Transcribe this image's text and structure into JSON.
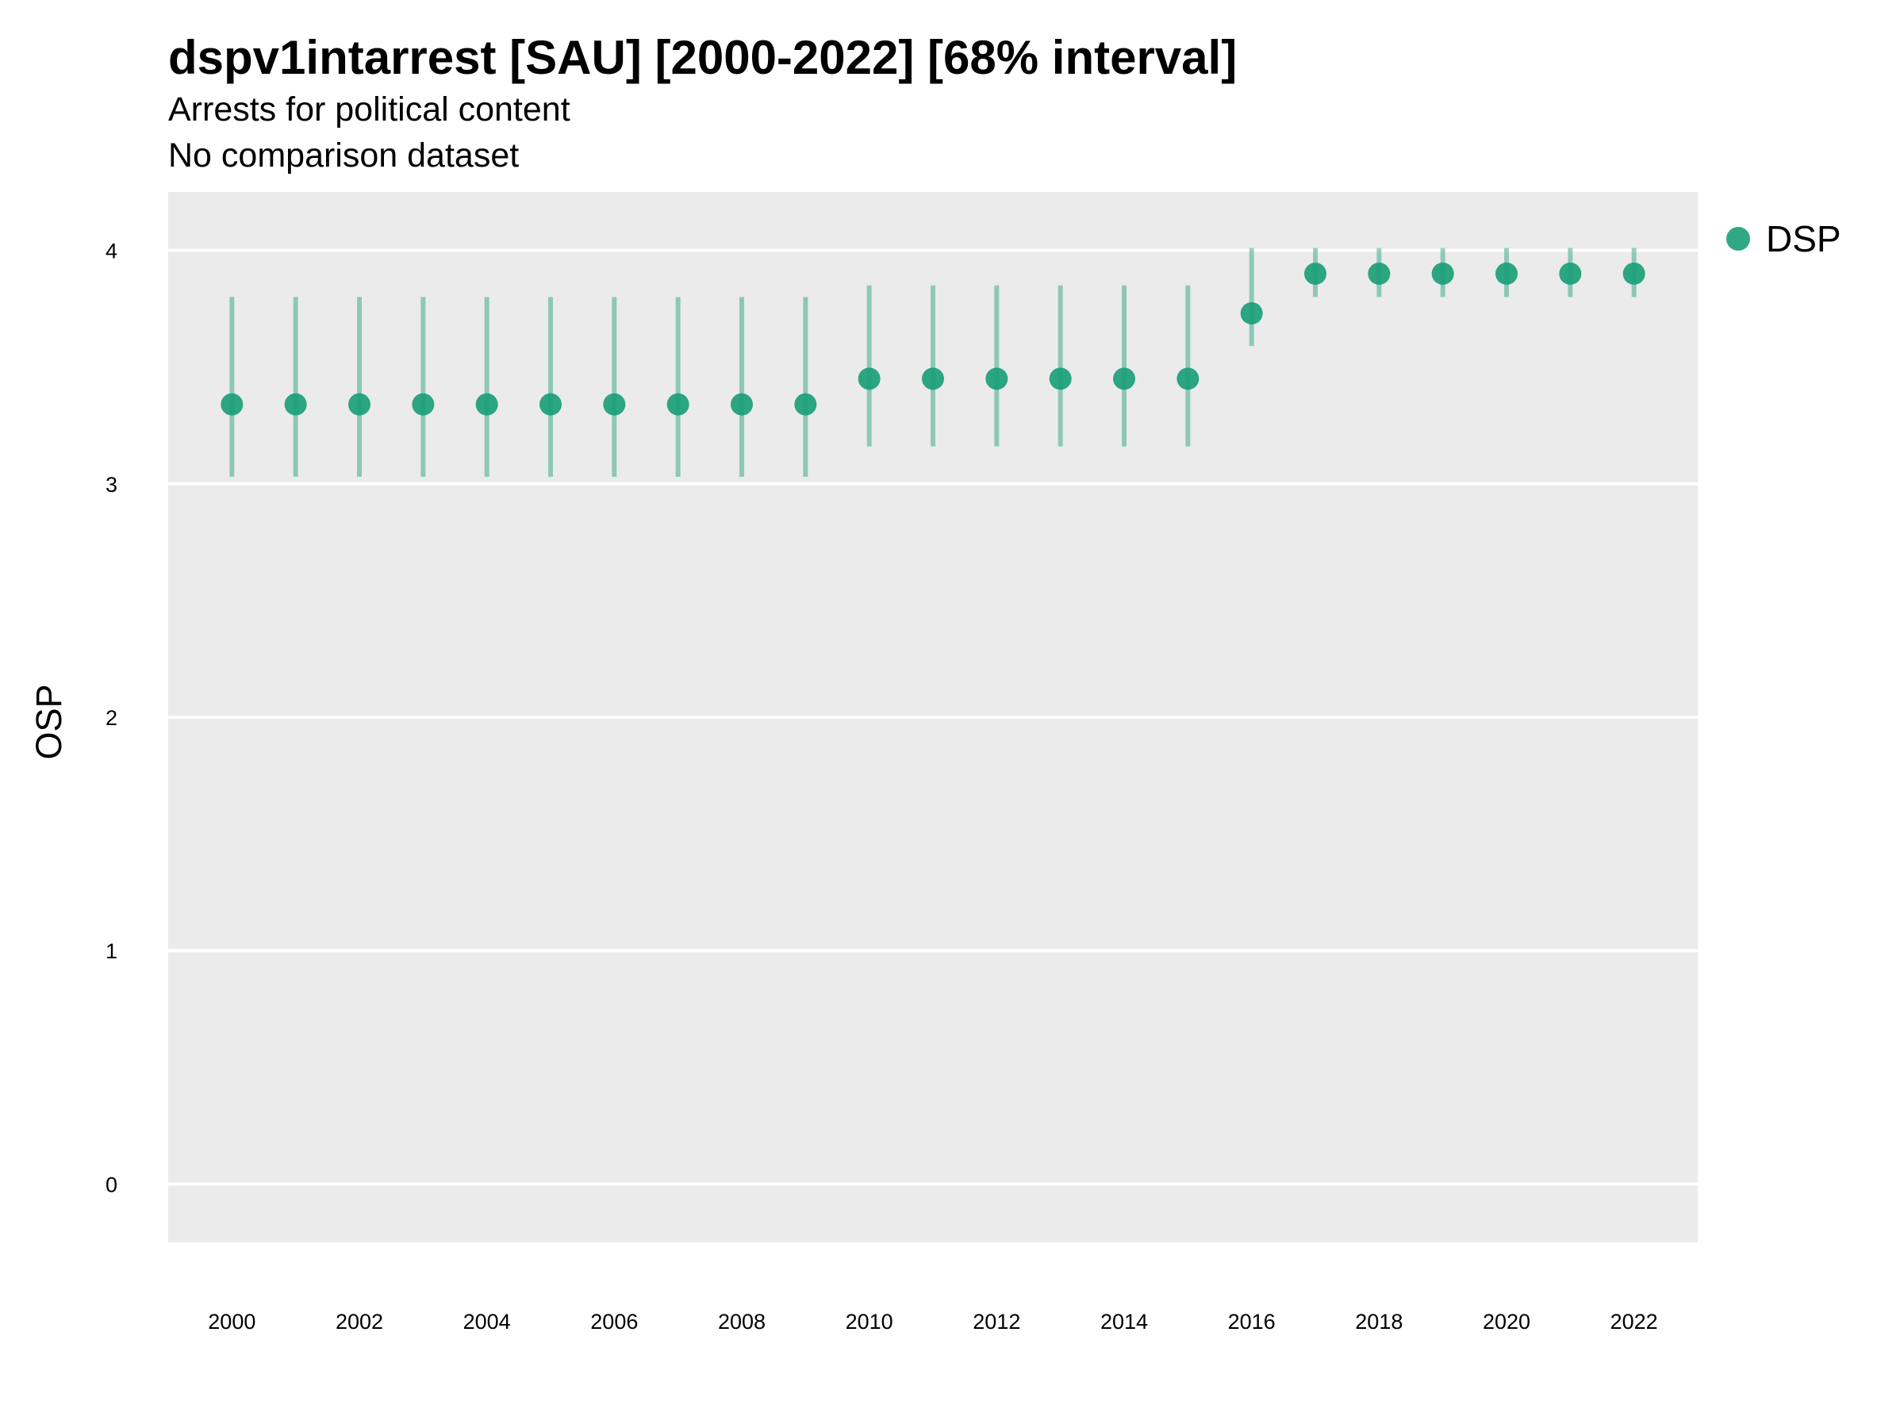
{
  "chart_data": {
    "type": "scatter",
    "title": "dspv1intarrest [SAU] [2000-2022] [68% interval]",
    "subtitle": [
      "Arrests for political content",
      "No comparison dataset"
    ],
    "xlabel": "",
    "ylabel": "OSP",
    "x_ticks": [
      2000,
      2002,
      2004,
      2006,
      2008,
      2010,
      2012,
      2014,
      2016,
      2018,
      2020,
      2022
    ],
    "y_ticks": [
      0,
      1,
      2,
      3,
      4
    ],
    "xlim": [
      1999,
      2023
    ],
    "ylim": [
      -0.25,
      4.25
    ],
    "grid": true,
    "legend_position": "right",
    "series": [
      {
        "name": "DSP",
        "color": "#1b9e77",
        "x": [
          2000,
          2001,
          2002,
          2003,
          2004,
          2005,
          2006,
          2007,
          2008,
          2009,
          2010,
          2011,
          2012,
          2013,
          2014,
          2015,
          2016,
          2017,
          2018,
          2019,
          2020,
          2021,
          2022
        ],
        "y": [
          3.34,
          3.34,
          3.34,
          3.34,
          3.34,
          3.34,
          3.34,
          3.34,
          3.34,
          3.34,
          3.45,
          3.45,
          3.45,
          3.45,
          3.45,
          3.45,
          3.73,
          3.9,
          3.9,
          3.9,
          3.9,
          3.9,
          3.9
        ],
        "lower": [
          3.03,
          3.03,
          3.03,
          3.03,
          3.03,
          3.03,
          3.03,
          3.03,
          3.03,
          3.03,
          3.16,
          3.16,
          3.16,
          3.16,
          3.16,
          3.16,
          3.59,
          3.8,
          3.8,
          3.8,
          3.8,
          3.8,
          3.8
        ],
        "upper": [
          3.8,
          3.8,
          3.8,
          3.8,
          3.8,
          3.8,
          3.8,
          3.8,
          3.8,
          3.8,
          3.85,
          3.85,
          3.85,
          3.85,
          3.85,
          3.85,
          4.01,
          4.01,
          4.01,
          4.01,
          4.01,
          4.01,
          4.01
        ]
      }
    ]
  }
}
